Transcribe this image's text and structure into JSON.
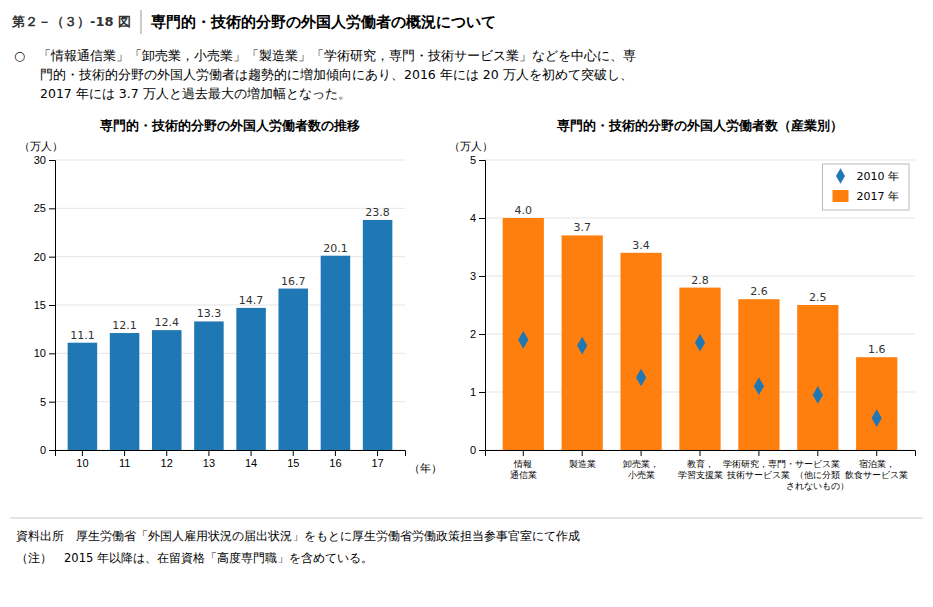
{
  "figure_label": "第２－（３）-18 図",
  "title": "専門的・技術的分野の外国人労働者の概況について",
  "description": [
    "○　「情報通信業」「卸売業，小売業」「製造業」「学術研究，専門・技術サービス業」などを中心に、専",
    "　　門的・技術的分野の外国人労働者は趨勢的に増加傾向にあり、2016 年には 20 万人を初めて突破し、",
    "　　2017 年には 3.7 万人と過去最大の増加幅となった。"
  ],
  "footer": [
    "資料出所　厚生労働省「外国人雇用状況の届出状況」をもとに厚生労働省労働政策担当参事官室にて作成",
    "（注）　2015 年以降は、在留資格「高度専門職」を含めている。"
  ],
  "chart_data": [
    {
      "type": "bar",
      "title": "専門的・技術的分野の外国人労働者数の推移",
      "y_label": "（万人）",
      "x_label": "（年）",
      "categories": [
        "10",
        "11",
        "12",
        "13",
        "14",
        "15",
        "16",
        "17"
      ],
      "values": [
        11.1,
        12.1,
        12.4,
        13.3,
        14.7,
        16.7,
        20.1,
        23.8
      ],
      "ylim": [
        0,
        30
      ],
      "yticks": [
        0,
        5,
        10,
        15,
        20,
        25,
        30
      ],
      "grid": true,
      "data_labels": true
    },
    {
      "type": "bar",
      "title": "専門的・技術的分野の外国人労働者数（産業別）",
      "y_label": "（万人）",
      "categories": [
        "情報\n通信業",
        "製造業",
        "卸売業，\n小売業",
        "教育，\n学習支援業",
        "学術研究，専門・\n技術サービス業",
        "サービス業\n（他に分類\nされないもの）",
        "宿泊業，\n飲食サービス業"
      ],
      "series": [
        {
          "name": "2010 年",
          "type": "scatter",
          "marker": "diamond",
          "values": [
            1.9,
            1.8,
            1.25,
            1.85,
            1.1,
            0.95,
            0.55
          ]
        },
        {
          "name": "2017 年",
          "type": "bar",
          "values": [
            4.0,
            3.7,
            3.4,
            2.8,
            2.6,
            2.5,
            1.6
          ],
          "value_labels": [
            "4.0",
            "3.7",
            "3.4",
            "2.8",
            "2.6",
            "2.5",
            "1.6"
          ],
          "data_labels": true
        }
      ],
      "ylim": [
        0,
        5
      ],
      "yticks": [
        0,
        1,
        2,
        3,
        4,
        5
      ],
      "grid": true,
      "legend": "upper right"
    }
  ]
}
